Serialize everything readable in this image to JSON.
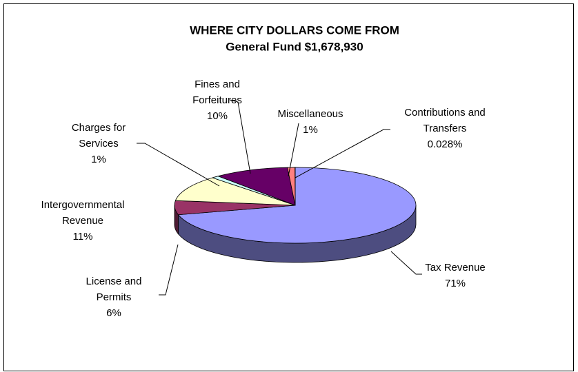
{
  "chart_data": {
    "type": "pie",
    "style": "3d",
    "title": "WHERE CITY DOLLARS COME FROM",
    "subtitle": "General Fund $1,678,930",
    "categories": [
      "Tax Revenue",
      "License and Permits",
      "Intergovernmental Revenue",
      "Charges for Services",
      "Fines and Forfeitures",
      "Miscellaneous",
      "Contributions and Transfers"
    ],
    "values": [
      71,
      6,
      11,
      1,
      10,
      1,
      0.028
    ],
    "value_labels": [
      "71%",
      "6%",
      "11%",
      "1%",
      "10%",
      "1%",
      "0.028%"
    ],
    "colors": [
      "#9999ff",
      "#993366",
      "#ffffcc",
      "#ccffff",
      "#660066",
      "#ff8080",
      "#0066cc"
    ]
  }
}
